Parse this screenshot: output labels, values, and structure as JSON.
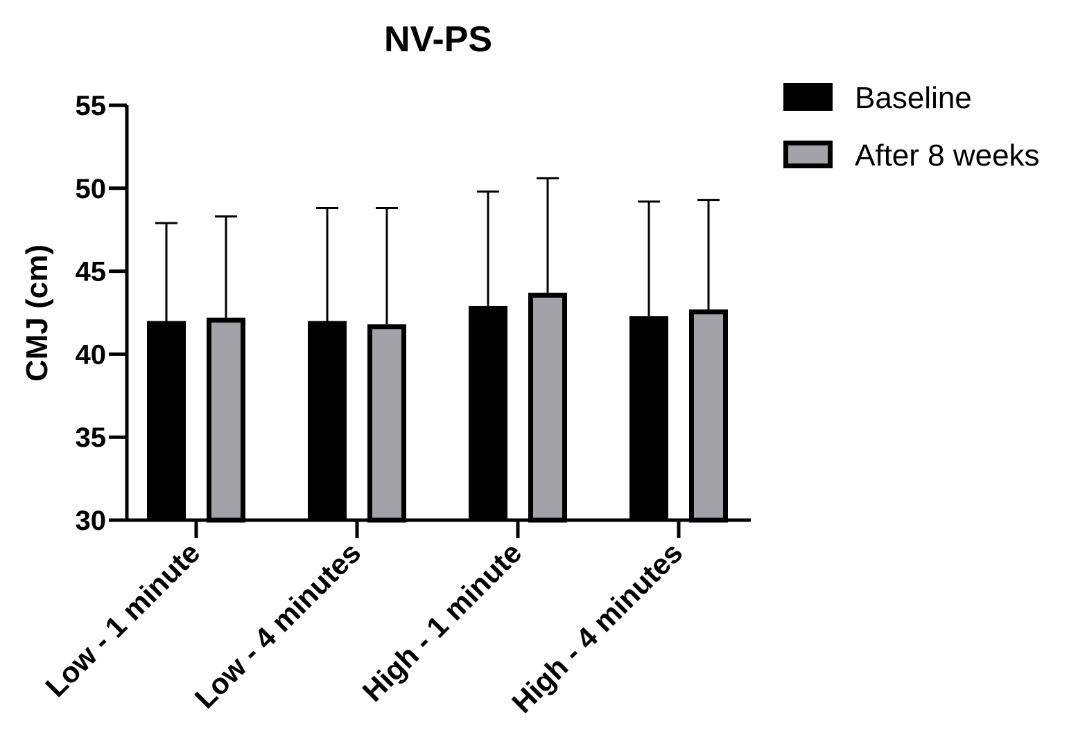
{
  "chart_data": {
    "type": "bar",
    "title": "NV-PS",
    "xlabel": "",
    "ylabel": "CMJ (cm)",
    "ylim": [
      30,
      55
    ],
    "yticks": [
      30,
      35,
      40,
      45,
      50,
      55
    ],
    "grid": false,
    "legend_position": "top-right",
    "categories": [
      "Low - 1 minute",
      "Low - 4 minutes",
      "High - 1 minute",
      "High - 4 minutes"
    ],
    "series": [
      {
        "name": "Baseline",
        "values": [
          42.0,
          42.0,
          42.9,
          42.3
        ],
        "error_upper": [
          47.9,
          48.8,
          49.8,
          49.2
        ],
        "fill": "#000000",
        "stroke": "#000000"
      },
      {
        "name": "After 8 weeks",
        "values": [
          42.2,
          41.8,
          43.7,
          42.7
        ],
        "error_upper": [
          48.3,
          48.8,
          50.6,
          49.3
        ],
        "fill": "#a3a3a7",
        "stroke": "#000000"
      }
    ]
  }
}
